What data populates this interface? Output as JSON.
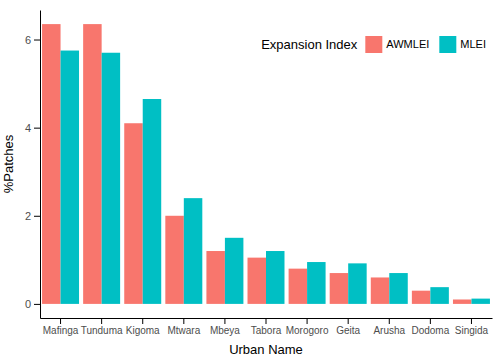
{
  "chart_data": {
    "type": "bar",
    "x_label": "Urban Name",
    "y_label": "%Patches",
    "legend_title": "Expansion Index",
    "categories": [
      "Mafinga",
      "Tunduma",
      "Kigoma",
      "Mtwara",
      "Mbeya",
      "Tabora",
      "Morogoro",
      "Geita",
      "Arusha",
      "Dodoma",
      "Singida"
    ],
    "series": [
      {
        "name": "AWMLEI",
        "color": "#F8766D",
        "values": [
          6.35,
          6.35,
          4.1,
          2.0,
          1.2,
          1.05,
          0.8,
          0.7,
          0.6,
          0.3,
          0.1
        ]
      },
      {
        "name": "MLEI",
        "color": "#00BFC4",
        "values": [
          5.75,
          5.7,
          4.65,
          2.4,
          1.5,
          1.2,
          0.95,
          0.92,
          0.7,
          0.38,
          0.12
        ]
      }
    ],
    "ylim": [
      -0.32,
      6.67
    ],
    "yticks": [
      0,
      2,
      4,
      6
    ],
    "grid": false,
    "legend": "top-right"
  }
}
